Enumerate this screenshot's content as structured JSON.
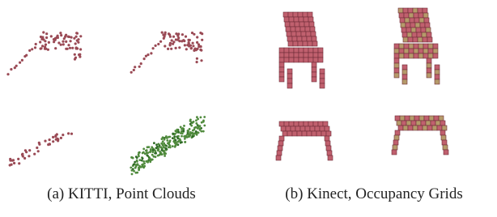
{
  "captions": [
    "(a) KITTI, Point Clouds",
    "(b) Kinect, Occupancy Grids"
  ]
}
